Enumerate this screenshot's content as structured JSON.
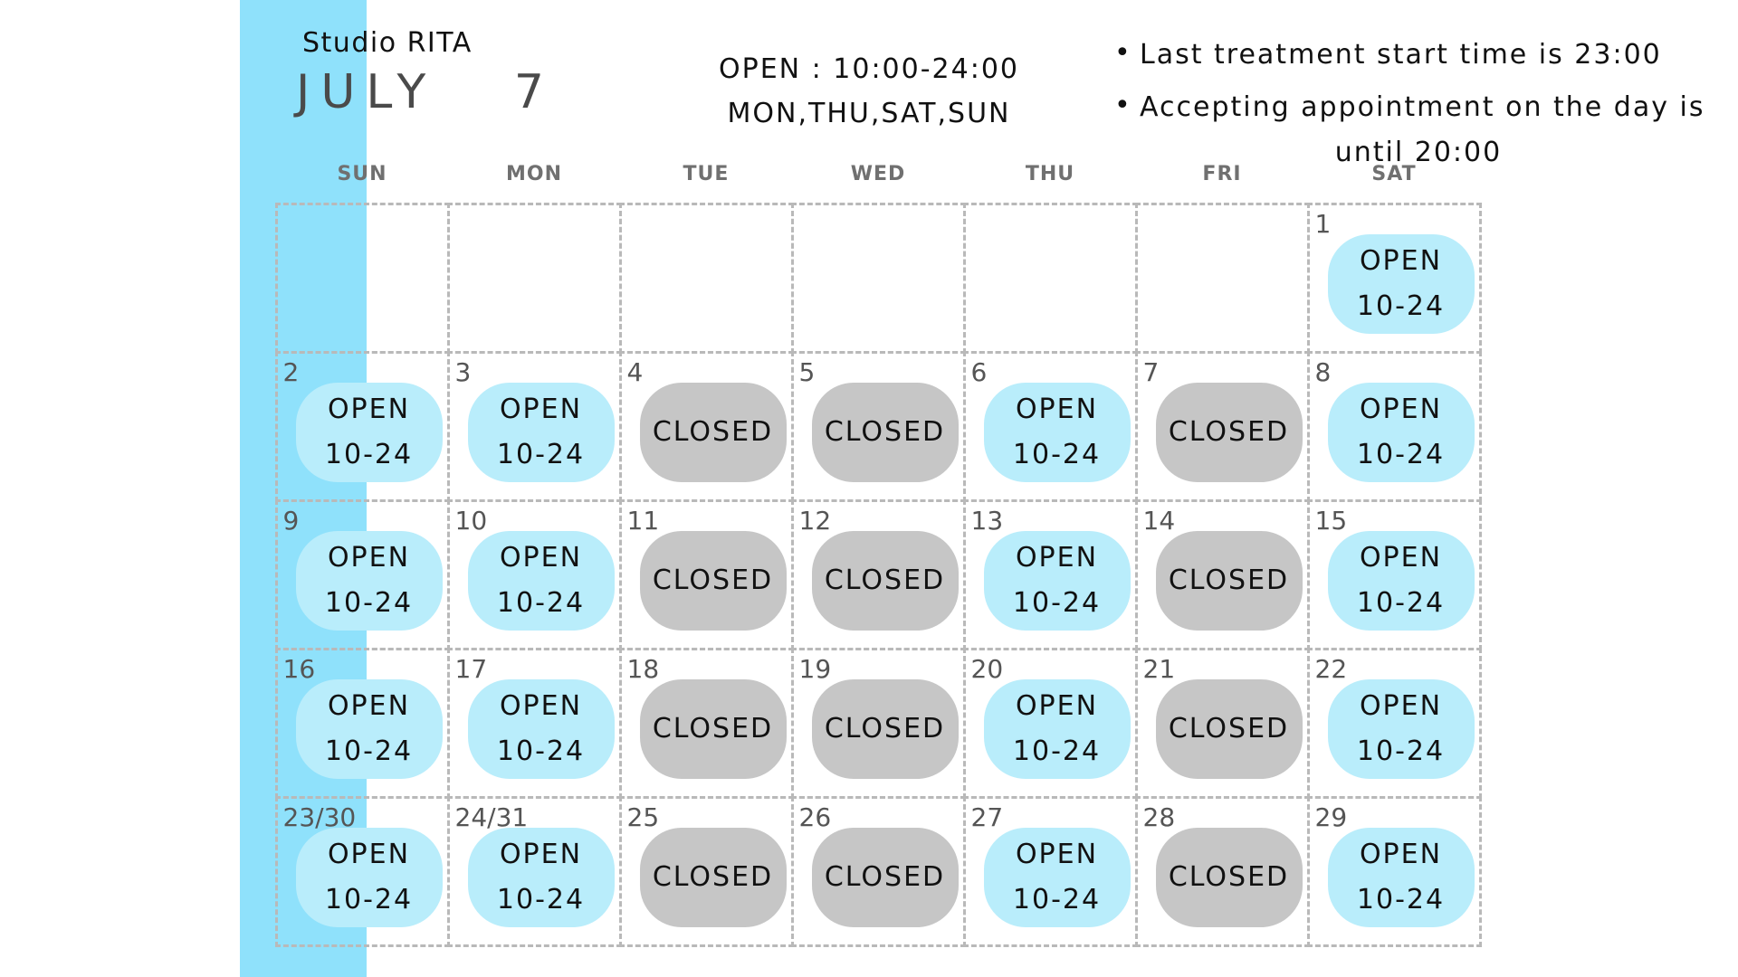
{
  "header": {
    "studio": "Studio RITA",
    "month": "JULY   7",
    "hours_line1": "OPEN : 10:00-24:00",
    "hours_line2": "MON,THU,SAT,SUN",
    "note1": "Last treatment start time is 23:00",
    "note2a": "Accepting appointment on the day is",
    "note2b": "until 20:00"
  },
  "colors": {
    "stripe": "#8fe1fb",
    "open": "#b9edfb",
    "closed": "#c6c6c6"
  },
  "weekdays": [
    "SUN",
    "MON",
    "TUE",
    "WED",
    "THU",
    "FRI",
    "SAT"
  ],
  "status_labels": {
    "open": "OPEN",
    "open_hours": "10-24",
    "closed": "CLOSED"
  },
  "weeks": [
    [
      {
        "day": "",
        "status": ""
      },
      {
        "day": "",
        "status": ""
      },
      {
        "day": "",
        "status": ""
      },
      {
        "day": "",
        "status": ""
      },
      {
        "day": "",
        "status": ""
      },
      {
        "day": "",
        "status": ""
      },
      {
        "day": "1",
        "status": "open"
      }
    ],
    [
      {
        "day": "2",
        "status": "open"
      },
      {
        "day": "3",
        "status": "open"
      },
      {
        "day": "4",
        "status": "closed"
      },
      {
        "day": "5",
        "status": "closed"
      },
      {
        "day": "6",
        "status": "open"
      },
      {
        "day": "7",
        "status": "closed"
      },
      {
        "day": "8",
        "status": "open"
      }
    ],
    [
      {
        "day": "9",
        "status": "open"
      },
      {
        "day": "10",
        "status": "open"
      },
      {
        "day": "11",
        "status": "closed"
      },
      {
        "day": "12",
        "status": "closed"
      },
      {
        "day": "13",
        "status": "open"
      },
      {
        "day": "14",
        "status": "closed"
      },
      {
        "day": "15",
        "status": "open"
      }
    ],
    [
      {
        "day": "16",
        "status": "open"
      },
      {
        "day": "17",
        "status": "open"
      },
      {
        "day": "18",
        "status": "closed"
      },
      {
        "day": "19",
        "status": "closed"
      },
      {
        "day": "20",
        "status": "open"
      },
      {
        "day": "21",
        "status": "closed"
      },
      {
        "day": "22",
        "status": "open"
      }
    ],
    [
      {
        "day": "23/30",
        "status": "open"
      },
      {
        "day": "24/31",
        "status": "open"
      },
      {
        "day": "25",
        "status": "closed"
      },
      {
        "day": "26",
        "status": "closed"
      },
      {
        "day": "27",
        "status": "open"
      },
      {
        "day": "28",
        "status": "closed"
      },
      {
        "day": "29",
        "status": "open"
      }
    ]
  ]
}
